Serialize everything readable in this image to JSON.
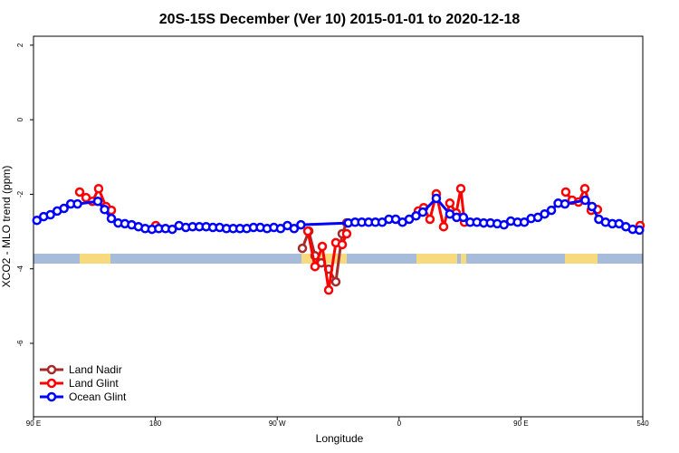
{
  "chart_data": {
    "type": "line",
    "title": "20S-15S December (Ver 10)   2015-01-01 to 2020-12-18",
    "x_label": "Longitude",
    "y_label": "XCO2 - MLO trend (ppm)",
    "xlim": [
      90,
      540
    ],
    "ylim": [
      -7.97,
      2.24
    ],
    "xticks": [
      {
        "value": 90,
        "label": "90 E"
      },
      180,
      {
        "value": 270,
        "label": "90 W"
      },
      {
        "value": 360,
        "label": "0"
      },
      {
        "value": 450,
        "label": "90 E"
      },
      540
    ],
    "yticks": [
      2,
      0,
      -2,
      -4,
      -6
    ],
    "legend": "bottom-left",
    "series": [
      {
        "name": "Land Nadir",
        "color": "#a52a2a",
        "x": [
          288.6,
          293.3,
          297.9,
          302.6,
          308,
          313.3,
          318,
          321.3
        ],
        "values": [
          -3.45,
          -2.99,
          -3.65,
          -3.84,
          -4.01,
          -4.35,
          -3.06,
          -2.77
        ]
      },
      {
        "name": "Land Glint",
        "color": "#ff0000",
        "x": [
          124.1,
          128.8,
          133.5,
          138.1,
          143.5,
          147.5,
          160,
          180.3,
          240,
          292.6,
          297.9,
          303.3,
          308,
          313.3,
          318,
          321.3,
          350,
          374.2,
          378.2,
          382.8,
          387.5,
          392.9,
          397.5,
          402.2,
          405.6,
          408.3,
          450,
          483.1,
          487.8,
          492.5,
          497.2,
          501.9,
          506.5,
          520,
          538
        ],
        "values": [
          -1.94,
          -2.09,
          -2.19,
          -1.85,
          -2.33,
          -2.43,
          null,
          -2.84,
          null,
          -2.99,
          -3.94,
          -3.4,
          -4.57,
          -3.3,
          -3.35,
          -3.06,
          null,
          -2.45,
          -2.36,
          -2.67,
          -1.99,
          -2.87,
          -2.24,
          -2.5,
          -1.85,
          -2.75,
          null,
          -1.94,
          -2.16,
          -2.21,
          -1.85,
          -2.43,
          -2.41,
          null,
          -2.84
        ]
      },
      {
        "name": "Ocean Glint",
        "color": "#0000ff",
        "x": [
          92.5,
          97.5,
          102.5,
          107.5,
          112.5,
          117.5,
          122.5,
          137.5,
          142.5,
          147.5,
          152.5,
          157.5,
          162.5,
          167.5,
          172.5,
          177.5,
          182.5,
          187.5,
          192.5,
          197.5,
          202.5,
          207.5,
          212.5,
          217.5,
          222.5,
          227.5,
          232.5,
          237.5,
          242.5,
          247.5,
          252.5,
          257.5,
          262.5,
          267.5,
          272.5,
          277.5,
          282.5,
          287.5,
          322.5,
          327.5,
          332.5,
          337.5,
          342.5,
          347.5,
          352.5,
          357.5,
          362.5,
          367.5,
          372.5,
          377.5,
          387.5,
          397.5,
          402.5,
          407.5,
          412.5,
          417.5,
          422.5,
          427.5,
          432.5,
          437.5,
          442.5,
          447.5,
          452.5,
          457.5,
          462.5,
          467.5,
          472.5,
          477.5,
          482.5,
          497.5,
          502.5,
          507.5,
          512.5,
          517.5,
          522.5,
          527.5,
          532.5,
          537.5
        ],
        "values": [
          -2.7,
          -2.6,
          -2.55,
          -2.45,
          -2.38,
          -2.26,
          -2.26,
          -2.19,
          -2.41,
          -2.65,
          -2.77,
          -2.79,
          -2.82,
          -2.87,
          -2.92,
          -2.94,
          -2.92,
          -2.92,
          -2.94,
          -2.84,
          -2.89,
          -2.87,
          -2.87,
          -2.87,
          -2.89,
          -2.89,
          -2.92,
          -2.92,
          -2.92,
          -2.92,
          -2.89,
          -2.89,
          -2.92,
          -2.89,
          -2.92,
          -2.84,
          -2.92,
          -2.82,
          -2.77,
          -2.75,
          -2.75,
          -2.75,
          -2.75,
          -2.75,
          -2.67,
          -2.67,
          -2.75,
          -2.67,
          -2.58,
          -2.48,
          -2.11,
          -2.53,
          -2.62,
          -2.62,
          -2.75,
          -2.75,
          -2.77,
          -2.77,
          -2.79,
          -2.82,
          -2.72,
          -2.75,
          -2.75,
          -2.65,
          -2.62,
          -2.53,
          -2.43,
          -2.24,
          -2.26,
          -2.16,
          -2.33,
          -2.67,
          -2.75,
          -2.79,
          -2.79,
          -2.87,
          -2.94,
          -2.96
        ]
      }
    ]
  }
}
